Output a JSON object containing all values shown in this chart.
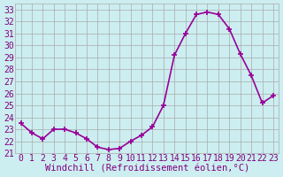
{
  "x": [
    0,
    1,
    2,
    3,
    4,
    5,
    6,
    7,
    8,
    9,
    10,
    11,
    12,
    13,
    14,
    15,
    16,
    17,
    18,
    19,
    20,
    21,
    22,
    23
  ],
  "y": [
    23.5,
    22.7,
    22.2,
    23.0,
    23.0,
    22.7,
    22.2,
    21.5,
    21.3,
    21.4,
    22.0,
    22.5,
    23.2,
    25.0,
    29.2,
    31.0,
    32.6,
    32.8,
    32.6,
    31.4,
    29.3,
    27.5,
    25.2,
    25.8
  ],
  "line_color": "#990099",
  "marker": "+",
  "markersize": 5,
  "linewidth": 1.2,
  "xlabel": "Windchill (Refroidissement éolien,°C)",
  "ylim": [
    21,
    33.5
  ],
  "yticks": [
    21,
    22,
    23,
    24,
    25,
    26,
    27,
    28,
    29,
    30,
    31,
    32,
    33
  ],
  "xticks": [
    0,
    1,
    2,
    3,
    4,
    5,
    6,
    7,
    8,
    9,
    10,
    11,
    12,
    13,
    14,
    15,
    16,
    17,
    18,
    19,
    20,
    21,
    22,
    23
  ],
  "background_color": "#cceef0",
  "grid_color": "#aaaaaa",
  "tick_color": "#800080",
  "xlabel_color": "#800080",
  "xlabel_fontsize": 7.5,
  "tick_fontsize": 7,
  "xlim": [
    -0.5,
    23.5
  ]
}
